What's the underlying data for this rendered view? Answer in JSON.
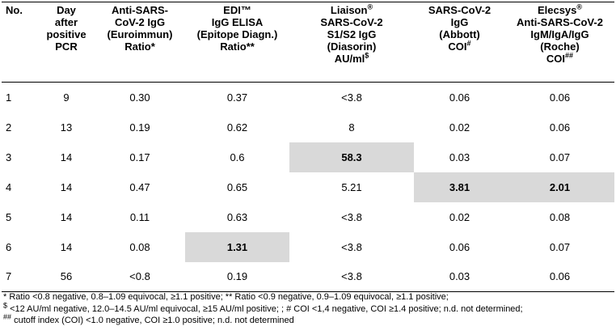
{
  "table": {
    "headers": [
      {
        "lines": [
          "No."
        ]
      },
      {
        "lines": [
          "Day",
          "after",
          "positive",
          "PCR"
        ]
      },
      {
        "lines": [
          "Anti-SARS-",
          "CoV-2 IgG",
          "(Euroimmun)",
          "Ratio*"
        ]
      },
      {
        "lines": [
          "EDI™",
          "IgG ELISA",
          "(Epitope Diagn.)",
          "Ratio**"
        ]
      },
      {
        "lines": [
          "Liaison®",
          "SARS-CoV-2",
          "S1/S2 IgG",
          "(Diasorin)",
          "AU/ml$"
        ]
      },
      {
        "lines": [
          "SARS-CoV-2",
          "IgG",
          "(Abbott)",
          "COI#"
        ]
      },
      {
        "lines": [
          "Elecsys®",
          "Anti-SARS-CoV-2",
          "IgM/IgA/IgG",
          "(Roche)",
          "COI##"
        ]
      }
    ],
    "rows": [
      [
        "1",
        "9",
        "0.30",
        "0.37",
        "<3.8",
        "0.06",
        "0.06"
      ],
      [
        "2",
        "13",
        "0.19",
        "0.62",
        "8",
        "0.02",
        "0.06"
      ],
      [
        "3",
        "14",
        "0.17",
        "0.6",
        "58.3",
        "0.03",
        "0.07"
      ],
      [
        "4",
        "14",
        "0.47",
        "0.65",
        "5.21",
        "3.81",
        "2.01"
      ],
      [
        "5",
        "14",
        "0.11",
        "0.63",
        "<3.8",
        "0.02",
        "0.08"
      ],
      [
        "6",
        "14",
        "0.08",
        "1.31",
        "<3.8",
        "0.06",
        "0.07"
      ],
      [
        "7",
        "56",
        "<0.8",
        "0.19",
        "<3.8",
        "0.03",
        "0.06"
      ]
    ],
    "highlights": [
      [
        2,
        4
      ],
      [
        3,
        5
      ],
      [
        3,
        6
      ],
      [
        5,
        3
      ]
    ],
    "highlight_color": "#d9d9d9"
  },
  "footnotes": [
    "* Ratio <0.8 negative, 0.8–1.09 equivocal, ≥1.1 positive; ** Ratio <0.9 negative, 0.9–1.09 equivocal, ≥1.1 positive;",
    "$ <12 AU/ml negative, 12.0–14.5 AU/ml equivocal, ≥15 AU/ml positive; ; # COI <1,4 negative, COI ≥1.4 positive; n.d. not determined;",
    "## cutoff index (COI) <1.0 negative, COI ≥1.0 positive; n.d. not determined"
  ]
}
